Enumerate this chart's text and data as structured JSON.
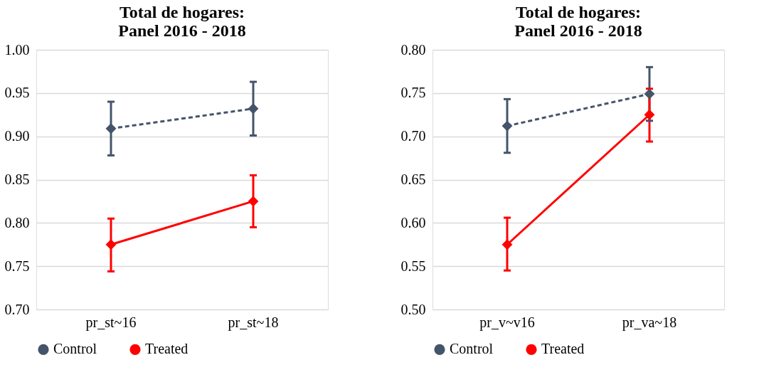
{
  "chart_data": [
    {
      "type": "line",
      "title": "Total de hogares:\nPanel 2016 - 2018",
      "categories": [
        "pr_st~16",
        "pr_st~18"
      ],
      "series": [
        {
          "name": "Control",
          "color": "#44546a",
          "line_style": "dashed",
          "values": [
            0.909,
            0.932
          ],
          "errors": [
            [
              0.878,
              0.94
            ],
            [
              0.901,
              0.963
            ]
          ]
        },
        {
          "name": "Treated",
          "color": "#ff0000",
          "line_style": "solid",
          "values": [
            0.775,
            0.825
          ],
          "errors": [
            [
              0.744,
              0.805
            ],
            [
              0.795,
              0.855
            ]
          ]
        }
      ],
      "ylim": [
        0.7,
        1.0
      ],
      "yticks": [
        {
          "value": 0.7,
          "label": "0.70"
        },
        {
          "value": 0.75,
          "label": "0.75"
        },
        {
          "value": 0.8,
          "label": "0.80"
        },
        {
          "value": 0.85,
          "label": "0.85"
        },
        {
          "value": 0.9,
          "label": "0.90"
        },
        {
          "value": 0.95,
          "label": "0.95"
        },
        {
          "value": 1.0,
          "label": "1.00"
        }
      ],
      "grid": "y",
      "marker": "diamond",
      "legend": "bottom"
    },
    {
      "type": "line",
      "title": "Total de hogares:\nPanel 2016 - 2018",
      "categories": [
        "pr_v~v16",
        "pr_va~18"
      ],
      "series": [
        {
          "name": "Control",
          "color": "#44546a",
          "line_style": "dashed",
          "values": [
            0.712,
            0.749
          ],
          "errors": [
            [
              0.681,
              0.743
            ],
            [
              0.718,
              0.78
            ]
          ]
        },
        {
          "name": "Treated",
          "color": "#ff0000",
          "line_style": "solid",
          "values": [
            0.575,
            0.725
          ],
          "errors": [
            [
              0.545,
              0.606
            ],
            [
              0.694,
              0.755
            ]
          ]
        }
      ],
      "ylim": [
        0.5,
        0.8
      ],
      "yticks": [
        {
          "value": 0.5,
          "label": "0.50"
        },
        {
          "value": 0.55,
          "label": "0.55"
        },
        {
          "value": 0.6,
          "label": "0.60"
        },
        {
          "value": 0.65,
          "label": "0.65"
        },
        {
          "value": 0.7,
          "label": "0.70"
        },
        {
          "value": 0.75,
          "label": "0.75"
        },
        {
          "value": 0.8,
          "label": "0.80"
        }
      ],
      "grid": "y",
      "marker": "diamond",
      "legend": "bottom"
    }
  ]
}
